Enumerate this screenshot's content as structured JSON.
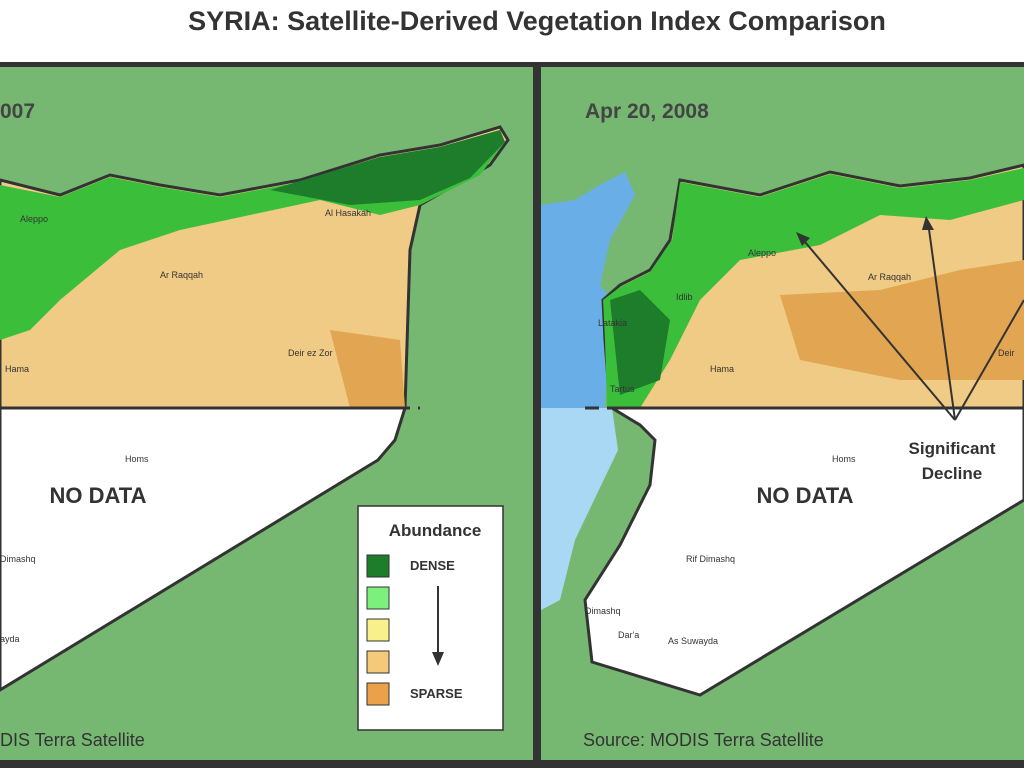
{
  "title": "SYRIA:  Satellite-Derived Vegetation Index Comparison",
  "panels": [
    {
      "date": "007",
      "places": [
        "Al Hasakah",
        "Aleppo",
        "Ar Raqqah",
        "Deir ez Zor",
        "Hama",
        "Homs",
        "Dimashq",
        "ayda"
      ],
      "no_data": "NO DATA",
      "source": "DIS Terra Satellite"
    },
    {
      "date": "Apr 20, 2008",
      "places": [
        "Aleppo",
        "Idlib",
        "Latakia",
        "Tartus",
        "Hama",
        "Ar Raqqah",
        "Deir",
        "Homs",
        "Rif Dimashq",
        "Dimashq",
        "Dar'a",
        "As Suwayda"
      ],
      "no_data": "NO DATA",
      "source": "Source: MODIS Terra Satellite",
      "annotation": [
        "Significant",
        "Decline"
      ]
    }
  ],
  "legend": {
    "title": "Abundance",
    "top": "DENSE",
    "bottom": "SPARSE"
  }
}
